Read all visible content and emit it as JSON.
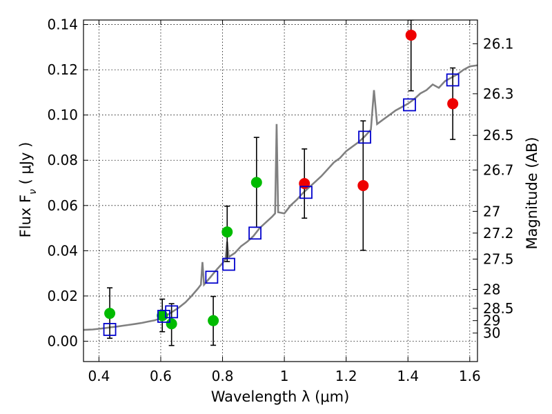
{
  "chart_data": {
    "type": "scatter",
    "xlabel": "Wavelength  λ (μm)",
    "ylabel": "Flux  F",
    "ylabel_sub": "ν",
    "ylabel_unit": "  ( μJy )",
    "y2label": "Magnitude (AB)",
    "xlim": [
      0.35,
      1.625
    ],
    "ylim": [
      -0.009,
      0.142
    ],
    "x_ticks": [
      0.4,
      0.6,
      0.8,
      1.0,
      1.2,
      1.4,
      1.6
    ],
    "x_tick_labels": [
      "0.4",
      "0.6",
      "0.8",
      "1",
      "1.2",
      "1.4",
      "1.6"
    ],
    "y_ticks": [
      0.0,
      0.02,
      0.04,
      0.06,
      0.08,
      0.1,
      0.12,
      0.14
    ],
    "y_tick_labels": [
      "0.00",
      "0.02",
      "0.04",
      "0.06",
      "0.08",
      "0.10",
      "0.12",
      "0.14"
    ],
    "y2_ticks": [
      {
        "label": "26.1",
        "flux": 0.1315
      },
      {
        "label": "26.3",
        "flux": 0.1094
      },
      {
        "label": "26.5",
        "flux": 0.091
      },
      {
        "label": "26.7",
        "flux": 0.0757
      },
      {
        "label": "27",
        "flux": 0.0574
      },
      {
        "label": "27.2",
        "flux": 0.0478
      },
      {
        "label": "27.5",
        "flux": 0.0363
      },
      {
        "label": "28",
        "flux": 0.0229
      },
      {
        "label": "28.5",
        "flux": 0.0145
      },
      {
        "label": "29",
        "flux": 0.0091
      },
      {
        "label": "30",
        "flux": 0.0036
      }
    ],
    "grid": true,
    "colors": {
      "model": "#808080",
      "green": "#00bb00",
      "red": "#ee0000",
      "box": "#0000cc",
      "errorbar": "#000000"
    },
    "model_spectrum": {
      "name": "",
      "points": [
        [
          0.35,
          0.005
        ],
        [
          0.38,
          0.0052
        ],
        [
          0.4,
          0.0055
        ],
        [
          0.42,
          0.0058
        ],
        [
          0.44,
          0.0062
        ],
        [
          0.46,
          0.0065
        ],
        [
          0.48,
          0.0069
        ],
        [
          0.5,
          0.0073
        ],
        [
          0.52,
          0.0077
        ],
        [
          0.54,
          0.0081
        ],
        [
          0.56,
          0.0087
        ],
        [
          0.58,
          0.0092
        ],
        [
          0.6,
          0.0102
        ],
        [
          0.62,
          0.0115
        ],
        [
          0.64,
          0.0132
        ],
        [
          0.66,
          0.015
        ],
        [
          0.68,
          0.0172
        ],
        [
          0.7,
          0.02
        ],
        [
          0.72,
          0.0232
        ],
        [
          0.73,
          0.025
        ],
        [
          0.735,
          0.035
        ],
        [
          0.74,
          0.025
        ],
        [
          0.76,
          0.0282
        ],
        [
          0.78,
          0.0315
        ],
        [
          0.8,
          0.0345
        ],
        [
          0.81,
          0.0365
        ],
        [
          0.815,
          0.044
        ],
        [
          0.82,
          0.0372
        ],
        [
          0.84,
          0.039
        ],
        [
          0.86,
          0.042
        ],
        [
          0.88,
          0.044
        ],
        [
          0.9,
          0.0465
        ],
        [
          0.92,
          0.05
        ],
        [
          0.94,
          0.0525
        ],
        [
          0.96,
          0.055
        ],
        [
          0.97,
          0.0565
        ],
        [
          0.975,
          0.096
        ],
        [
          0.98,
          0.057
        ],
        [
          1.0,
          0.0565
        ],
        [
          1.02,
          0.06
        ],
        [
          1.04,
          0.0625
        ],
        [
          1.06,
          0.0655
        ],
        [
          1.08,
          0.068
        ],
        [
          1.1,
          0.0705
        ],
        [
          1.12,
          0.073
        ],
        [
          1.14,
          0.076
        ],
        [
          1.16,
          0.079
        ],
        [
          1.18,
          0.081
        ],
        [
          1.2,
          0.084
        ],
        [
          1.22,
          0.086
        ],
        [
          1.24,
          0.088
        ],
        [
          1.26,
          0.0905
        ],
        [
          1.28,
          0.0935
        ],
        [
          1.29,
          0.111
        ],
        [
          1.3,
          0.096
        ],
        [
          1.32,
          0.098
        ],
        [
          1.34,
          0.1
        ],
        [
          1.36,
          0.102
        ],
        [
          1.38,
          0.1035
        ],
        [
          1.4,
          0.105
        ],
        [
          1.42,
          0.107
        ],
        [
          1.44,
          0.1095
        ],
        [
          1.46,
          0.111
        ],
        [
          1.48,
          0.1135
        ],
        [
          1.5,
          0.112
        ],
        [
          1.52,
          0.115
        ],
        [
          1.54,
          0.1165
        ],
        [
          1.56,
          0.118
        ],
        [
          1.58,
          0.12
        ],
        [
          1.6,
          0.1215
        ],
        [
          1.625,
          0.122
        ]
      ]
    },
    "series": [
      {
        "marker": "green-circle",
        "points": [
          {
            "x": 0.435,
            "y": 0.0123,
            "err_lo": 0.0013,
            "err_hi": 0.0236
          },
          {
            "x": 0.605,
            "y": 0.0113,
            "err_lo": 0.0042,
            "err_hi": 0.0186
          },
          {
            "x": 0.635,
            "y": 0.0077,
            "err_lo": -0.0019,
            "err_hi": 0.0166
          },
          {
            "x": 0.77,
            "y": 0.0091,
            "err_lo": -0.0018,
            "err_hi": 0.0198
          },
          {
            "x": 0.815,
            "y": 0.0483,
            "err_lo": 0.0352,
            "err_hi": 0.0597
          },
          {
            "x": 0.91,
            "y": 0.0702,
            "err_lo": 0.0504,
            "err_hi": 0.0901
          }
        ]
      },
      {
        "marker": "red-circle",
        "points": [
          {
            "x": 1.065,
            "y": 0.0697,
            "err_lo": 0.0544,
            "err_hi": 0.085
          },
          {
            "x": 1.255,
            "y": 0.0688,
            "err_lo": 0.0402,
            "err_hi": 0.0974
          },
          {
            "x": 1.41,
            "y": 0.1353,
            "err_lo": 0.1107,
            "err_hi": 0.142
          },
          {
            "x": 1.545,
            "y": 0.105,
            "err_lo": 0.0892,
            "err_hi": 0.1208
          }
        ]
      },
      {
        "marker": "blue-open-square",
        "points": [
          {
            "x": 0.435,
            "y": 0.0052
          },
          {
            "x": 0.61,
            "y": 0.011
          },
          {
            "x": 0.635,
            "y": 0.013
          },
          {
            "x": 0.765,
            "y": 0.0283
          },
          {
            "x": 0.82,
            "y": 0.034
          },
          {
            "x": 0.905,
            "y": 0.0478
          },
          {
            "x": 1.07,
            "y": 0.0658
          },
          {
            "x": 1.26,
            "y": 0.0902
          },
          {
            "x": 1.405,
            "y": 0.1045
          },
          {
            "x": 1.545,
            "y": 0.1155
          }
        ]
      }
    ]
  }
}
